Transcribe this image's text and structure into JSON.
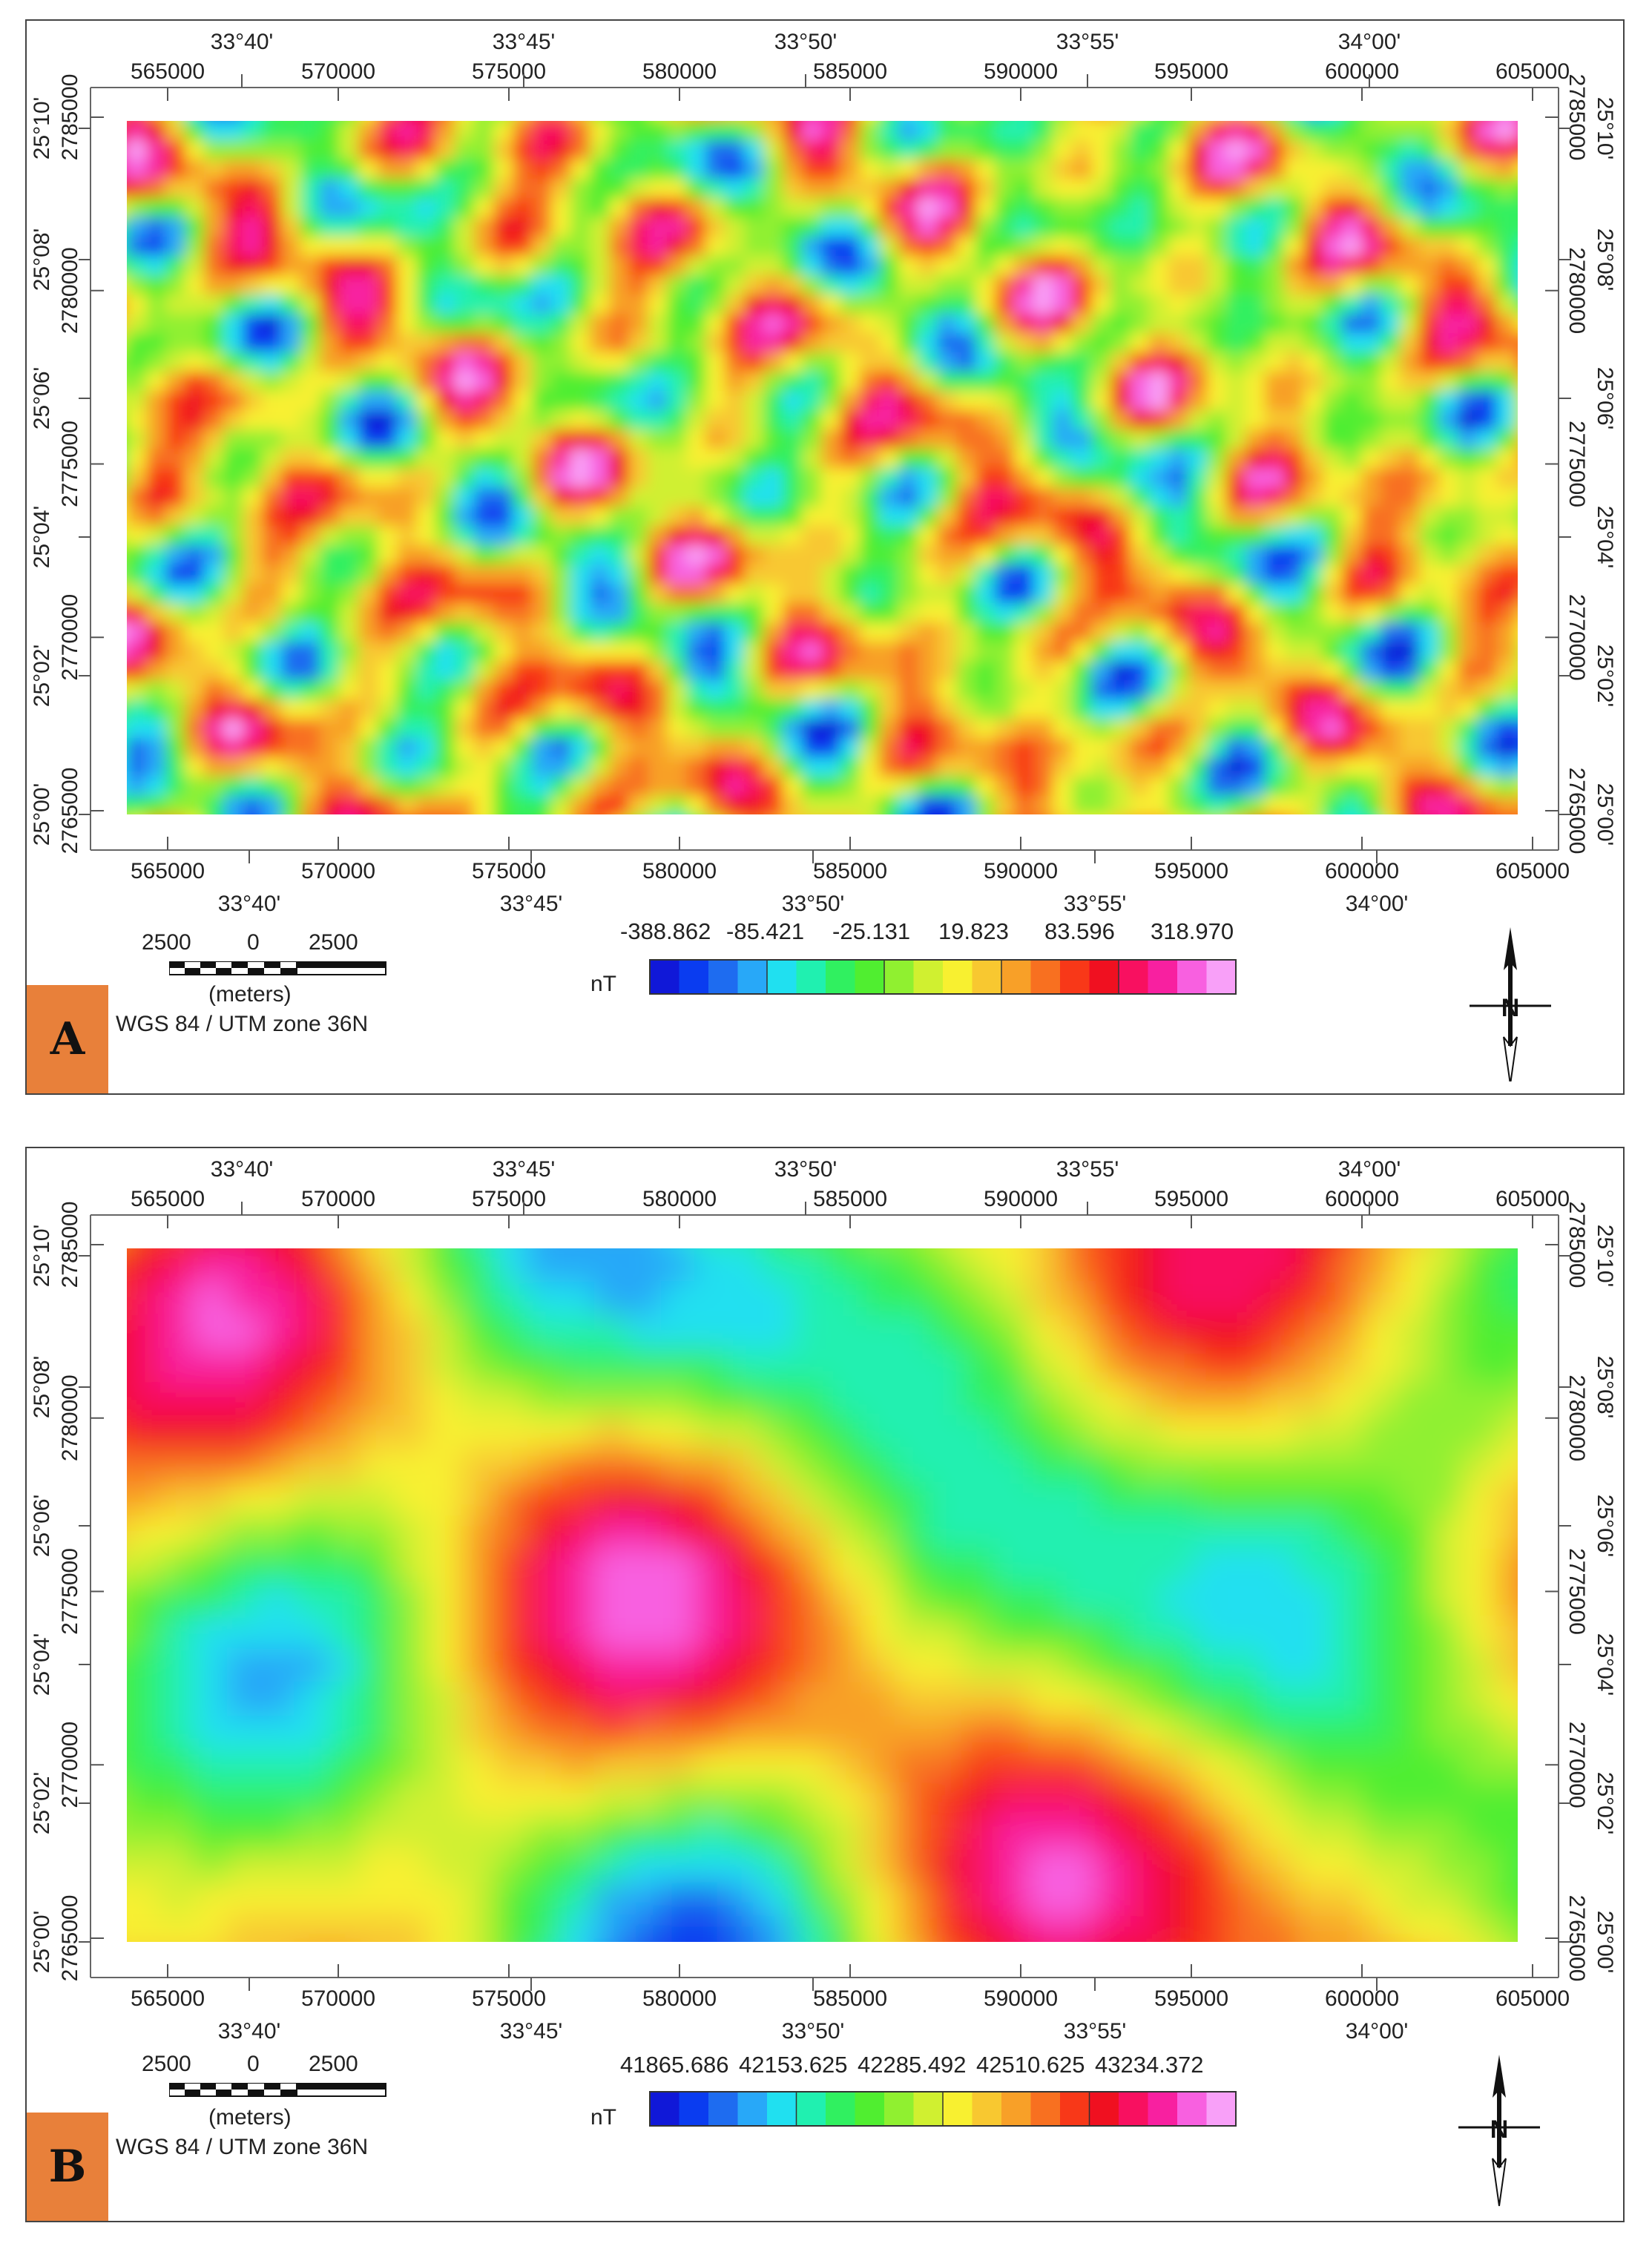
{
  "panels": [
    {
      "id": "A",
      "badge": "A",
      "top_lon_labels": [
        "33°40'",
        "33°45'",
        "33°50'",
        "33°55'",
        "34°00'"
      ],
      "bottom_lon_labels": [
        "33°40'",
        "33°45'",
        "33°50'",
        "33°55'",
        "34°00'"
      ],
      "top_easting_labels": [
        "565000",
        "570000",
        "575000",
        "580000",
        "585000",
        "590000",
        "595000",
        "600000",
        "605000"
      ],
      "bottom_easting_labels": [
        "565000",
        "570000",
        "575000",
        "580000",
        "585000",
        "590000",
        "595000",
        "600000",
        "605000"
      ],
      "left_northing_labels": [
        "2785000",
        "2780000",
        "2775000",
        "2770000",
        "2765000"
      ],
      "right_northing_labels": [
        "2785000",
        "2780000",
        "2775000",
        "2770000",
        "2765000"
      ],
      "left_lat_labels": [
        "25°10'",
        "25°08'",
        "25°06'",
        "25°04'",
        "25°02'",
        "25°00'"
      ],
      "right_lat_labels": [
        "25°10'",
        "25°08'",
        "25°06'",
        "25°04'",
        "25°02'",
        "25°00'"
      ],
      "legend_values": [
        "-388.862",
        "-85.421",
        "-25.131",
        "19.823",
        "83.596",
        "318.970"
      ],
      "legend_unit": "nT",
      "scale": {
        "left": "2500",
        "mid": "0",
        "right": "2500",
        "unit": "(meters)"
      },
      "projection": "WGS 84 / UTM zone 36N",
      "field_style": "high-frequency"
    },
    {
      "id": "B",
      "badge": "B",
      "top_lon_labels": [
        "33°40'",
        "33°45'",
        "33°50'",
        "33°55'",
        "34°00'"
      ],
      "bottom_lon_labels": [
        "33°40'",
        "33°45'",
        "33°50'",
        "33°55'",
        "34°00'"
      ],
      "top_easting_labels": [
        "565000",
        "570000",
        "575000",
        "580000",
        "585000",
        "590000",
        "595000",
        "600000",
        "605000"
      ],
      "bottom_easting_labels": [
        "565000",
        "570000",
        "575000",
        "580000",
        "585000",
        "590000",
        "595000",
        "600000",
        "605000"
      ],
      "left_northing_labels": [
        "2785000",
        "2780000",
        "2775000",
        "2770000",
        "2765000"
      ],
      "right_northing_labels": [
        "2785000",
        "2780000",
        "2775000",
        "2770000",
        "2765000"
      ],
      "left_lat_labels": [
        "25°10'",
        "25°08'",
        "25°06'",
        "25°04'",
        "25°02'",
        "25°00'"
      ],
      "right_lat_labels": [
        "25°10'",
        "25°08'",
        "25°06'",
        "25°04'",
        "25°02'",
        "25°00'"
      ],
      "legend_values": [
        "41865.686",
        "42153.625",
        "42285.492",
        "42510.625",
        "43234.372"
      ],
      "legend_unit": "nT",
      "scale": {
        "left": "2500",
        "mid": "0",
        "right": "2500",
        "unit": "(meters)"
      },
      "projection": "WGS 84 / UTM zone 36N",
      "field_style": "smooth"
    }
  ],
  "colors": {
    "ramp": [
      "#1018d8",
      "#0a3cf0",
      "#1e6cf0",
      "#28a8f8",
      "#20e0f0",
      "#20f0b0",
      "#30f060",
      "#50ee30",
      "#90f030",
      "#d0f030",
      "#f8f030",
      "#f8c830",
      "#f8a028",
      "#f87020",
      "#f83818",
      "#f01020",
      "#f81060",
      "#f820a0",
      "#f860e0",
      "#f8a0f8"
    ],
    "badge": "#e8803a"
  },
  "icons": {
    "north_arrow": "north-arrow-icon"
  }
}
